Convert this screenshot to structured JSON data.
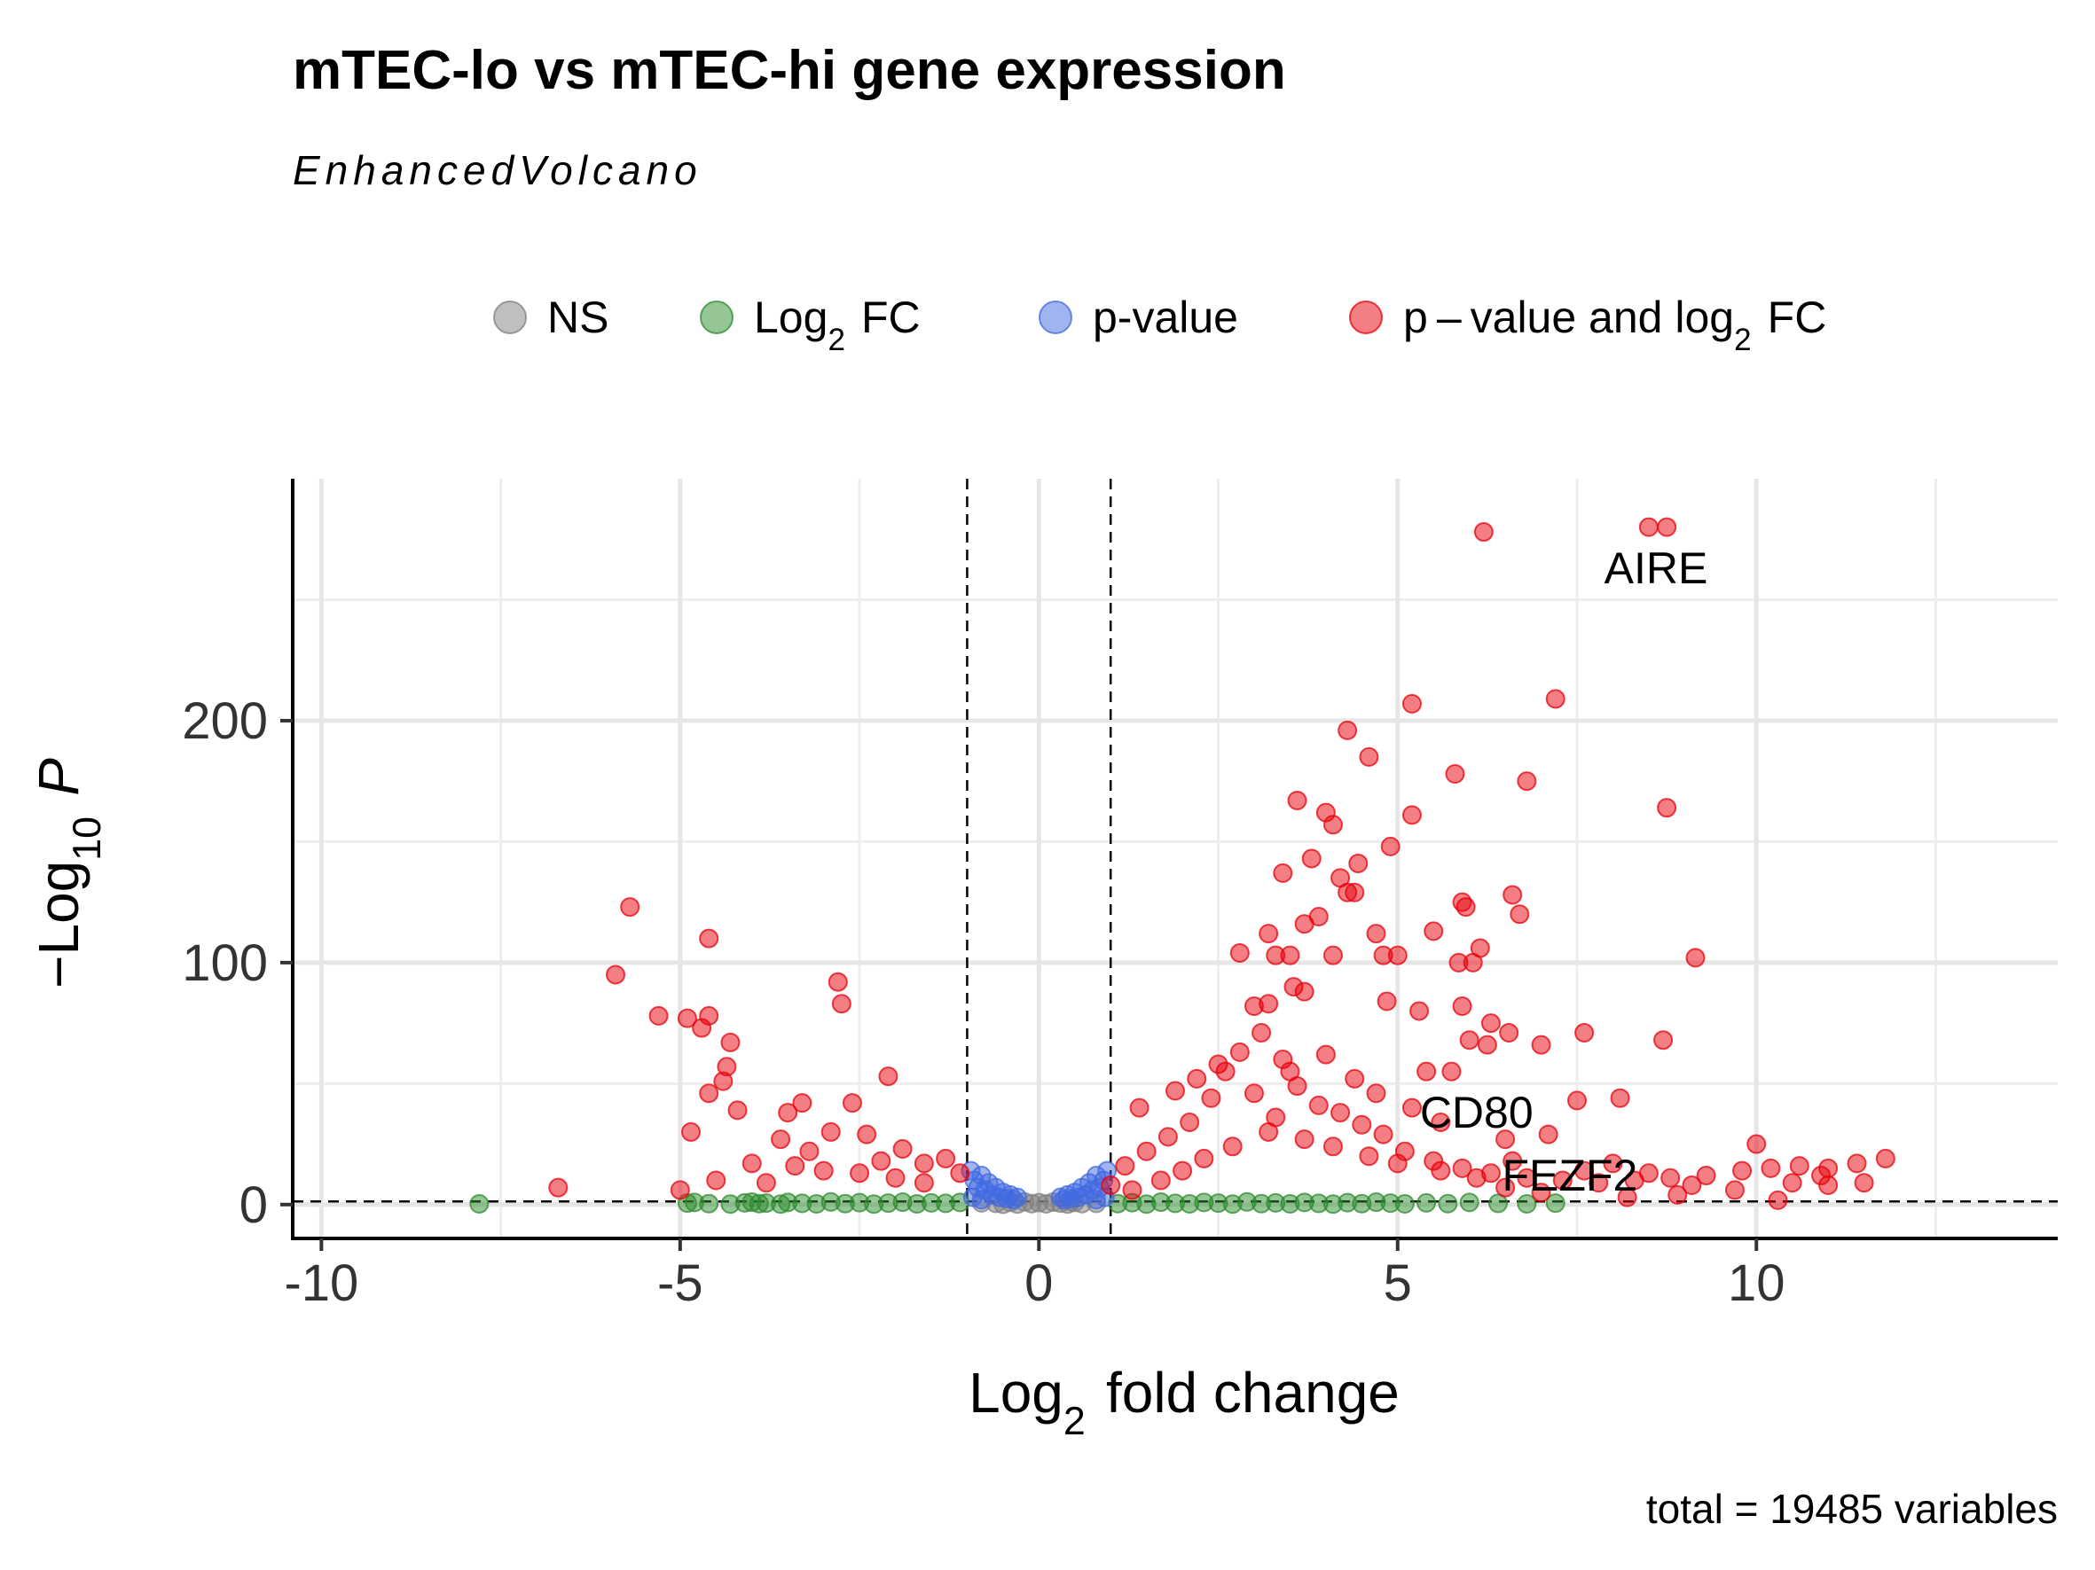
{
  "chart_data": {
    "type": "scatter",
    "title": "mTEC-lo vs mTEC-hi gene expression",
    "subtitle": "EnhancedVolcano",
    "xlabel": "Log2 fold change",
    "ylabel": "−Log10 P",
    "caption": "total = 19485 variables",
    "xlim": [
      -10.4,
      14.2
    ],
    "ylim": [
      -14,
      300
    ],
    "x_ticks": [
      -10,
      -5,
      0,
      5,
      10
    ],
    "x_tick_labels": [
      "-10",
      "-5",
      "0",
      "5",
      "10"
    ],
    "y_ticks": [
      0,
      100,
      200
    ],
    "y_tick_labels": [
      "0",
      "100",
      "200"
    ],
    "fc_cutoff": 1,
    "p_cutoff_neglog10": 1.3,
    "grid": true,
    "legend_position": "top",
    "legend": [
      {
        "key": "NS",
        "label": "NS",
        "color": "#808080"
      },
      {
        "key": "FC",
        "label": "Log2 FC",
        "color": "#2e8b2e"
      },
      {
        "key": "P",
        "label": "p-value",
        "color": "#4169e1"
      },
      {
        "key": "FC_P",
        "label": "p – value and log2 FC",
        "color": "#e8000b"
      }
    ],
    "labels": [
      {
        "text": "AIRE",
        "x": 8.6,
        "y": 263
      },
      {
        "text": "CD80",
        "x": 6.1,
        "y": 38
      },
      {
        "text": "FEZF2",
        "x": 7.4,
        "y": 12
      }
    ],
    "series": [
      {
        "name": "NS",
        "color": "#808080",
        "points": [
          [
            -0.6,
            0.5
          ],
          [
            -0.4,
            0.9
          ],
          [
            -0.3,
            0.2
          ],
          [
            -0.2,
            1.1
          ],
          [
            -0.1,
            0.4
          ],
          [
            0,
            0.8
          ],
          [
            0.1,
            0.3
          ],
          [
            0.2,
            1.0
          ],
          [
            0.3,
            0.6
          ],
          [
            0.4,
            0.2
          ],
          [
            0.5,
            0.9
          ],
          [
            0.6,
            0.4
          ],
          [
            -0.8,
            0.7
          ],
          [
            0.8,
            0.5
          ],
          [
            -0.5,
            0.1
          ],
          [
            0.45,
            1.2
          ]
        ]
      },
      {
        "name": "Log2 FC",
        "color": "#2e8b2e",
        "points": [
          [
            -7.8,
            0.3
          ],
          [
            -4.9,
            0.6
          ],
          [
            -4.8,
            0.9
          ],
          [
            -4.6,
            0.4
          ],
          [
            -4.3,
            0.2
          ],
          [
            -4.1,
            0.7
          ],
          [
            -4.0,
            1.0
          ],
          [
            -3.9,
            0.4
          ],
          [
            -3.8,
            0.6
          ],
          [
            -3.6,
            0.2
          ],
          [
            -3.5,
            0.9
          ],
          [
            -3.3,
            0.5
          ],
          [
            -3.1,
            0.3
          ],
          [
            -2.9,
            1.1
          ],
          [
            -2.7,
            0.4
          ],
          [
            -2.5,
            0.8
          ],
          [
            -2.3,
            0.2
          ],
          [
            -2.1,
            0.6
          ],
          [
            -1.9,
            1.0
          ],
          [
            -1.7,
            0.3
          ],
          [
            -1.5,
            0.7
          ],
          [
            -1.3,
            0.5
          ],
          [
            -1.1,
            0.9
          ],
          [
            1.1,
            0.4
          ],
          [
            1.3,
            0.8
          ],
          [
            1.5,
            0.2
          ],
          [
            1.7,
            1.0
          ],
          [
            1.9,
            0.5
          ],
          [
            2.1,
            0.3
          ],
          [
            2.3,
            0.9
          ],
          [
            2.5,
            0.6
          ],
          [
            2.7,
            0.2
          ],
          [
            2.9,
            1.1
          ],
          [
            3.1,
            0.4
          ],
          [
            3.3,
            0.7
          ],
          [
            3.5,
            0.3
          ],
          [
            3.7,
            0.9
          ],
          [
            3.9,
            0.5
          ],
          [
            4.1,
            0.2
          ],
          [
            4.3,
            0.8
          ],
          [
            4.5,
            0.4
          ],
          [
            4.7,
            1.0
          ],
          [
            4.9,
            0.6
          ],
          [
            5.1,
            0.3
          ],
          [
            5.4,
            0.7
          ],
          [
            5.7,
            0.4
          ],
          [
            6.0,
            0.9
          ],
          [
            6.4,
            0.5
          ],
          [
            6.8,
            0.3
          ],
          [
            7.2,
            0.6
          ]
        ]
      },
      {
        "name": "p-value",
        "color": "#4169e1",
        "points": [
          [
            -0.95,
            14
          ],
          [
            -0.9,
            10
          ],
          [
            -0.85,
            7
          ],
          [
            -0.8,
            12
          ],
          [
            -0.75,
            6
          ],
          [
            -0.7,
            9
          ],
          [
            -0.65,
            4
          ],
          [
            -0.6,
            7
          ],
          [
            -0.55,
            3
          ],
          [
            -0.5,
            5
          ],
          [
            -0.45,
            2.5
          ],
          [
            -0.4,
            4
          ],
          [
            -0.35,
            2
          ],
          [
            -0.3,
            3
          ],
          [
            0.3,
            3
          ],
          [
            0.35,
            2
          ],
          [
            0.4,
            4
          ],
          [
            0.45,
            2.5
          ],
          [
            0.5,
            5
          ],
          [
            0.55,
            3
          ],
          [
            0.6,
            7
          ],
          [
            0.65,
            4
          ],
          [
            0.7,
            9
          ],
          [
            0.75,
            6
          ],
          [
            0.8,
            12
          ],
          [
            0.85,
            7
          ],
          [
            0.9,
            10
          ],
          [
            0.95,
            14
          ],
          [
            -0.92,
            3
          ],
          [
            -0.8,
            2
          ],
          [
            0.8,
            2
          ],
          [
            0.92,
            3
          ]
        ]
      },
      {
        "name": "p – value and log2 FC",
        "color": "#e8000b",
        "points": [
          [
            8.5,
            280
          ],
          [
            8.75,
            280
          ],
          [
            6.2,
            278
          ],
          [
            7.2,
            209
          ],
          [
            5.2,
            207
          ],
          [
            4.3,
            196
          ],
          [
            4.6,
            185
          ],
          [
            5.8,
            178
          ],
          [
            6.8,
            175
          ],
          [
            8.75,
            164
          ],
          [
            3.6,
            167
          ],
          [
            4.0,
            162
          ],
          [
            4.1,
            157
          ],
          [
            5.2,
            161
          ],
          [
            4.9,
            148
          ],
          [
            3.8,
            143
          ],
          [
            4.45,
            141
          ],
          [
            4.2,
            135
          ],
          [
            3.4,
            137
          ],
          [
            4.4,
            129
          ],
          [
            4.3,
            129
          ],
          [
            5.9,
            125
          ],
          [
            5.95,
            123
          ],
          [
            6.6,
            128
          ],
          [
            6.7,
            120
          ],
          [
            5.5,
            113
          ],
          [
            3.9,
            119
          ],
          [
            3.2,
            112
          ],
          [
            4.7,
            112
          ],
          [
            3.7,
            116
          ],
          [
            6.15,
            106
          ],
          [
            6.05,
            100
          ],
          [
            5.85,
            100
          ],
          [
            9.15,
            102
          ],
          [
            2.8,
            104
          ],
          [
            3.3,
            103
          ],
          [
            3.5,
            103
          ],
          [
            4.1,
            103
          ],
          [
            4.8,
            103
          ],
          [
            5.0,
            103
          ],
          [
            3.55,
            90
          ],
          [
            3.7,
            88
          ],
          [
            3.0,
            82
          ],
          [
            3.2,
            83
          ],
          [
            5.9,
            82
          ],
          [
            4.85,
            84
          ],
          [
            5.3,
            80
          ],
          [
            6.3,
            75
          ],
          [
            6.55,
            71
          ],
          [
            6.0,
            68
          ],
          [
            6.25,
            66
          ],
          [
            7.0,
            66
          ],
          [
            7.6,
            71
          ],
          [
            8.7,
            68
          ],
          [
            5.4,
            55
          ],
          [
            5.75,
            55
          ],
          [
            7.5,
            43
          ],
          [
            8.1,
            44
          ],
          [
            -5.7,
            123
          ],
          [
            -5.9,
            95
          ],
          [
            -4.6,
            110
          ],
          [
            -5.3,
            78
          ],
          [
            -4.9,
            77
          ],
          [
            -4.6,
            78
          ],
          [
            -4.7,
            73
          ],
          [
            -4.3,
            67
          ],
          [
            -4.35,
            57
          ],
          [
            -4.4,
            51
          ],
          [
            -4.6,
            46
          ],
          [
            -4.2,
            39
          ],
          [
            -4.85,
            30
          ],
          [
            -2.8,
            92
          ],
          [
            -2.75,
            83
          ],
          [
            -2.1,
            53
          ],
          [
            -3.3,
            42
          ],
          [
            -3.5,
            38
          ],
          [
            -2.6,
            42
          ],
          [
            -6.7,
            7
          ],
          [
            -5.0,
            6
          ],
          [
            -4.5,
            10
          ],
          [
            -4.0,
            17
          ],
          [
            -3.6,
            27
          ],
          [
            -3.2,
            22
          ],
          [
            -2.9,
            30
          ],
          [
            -2.4,
            29
          ],
          [
            -2.2,
            18
          ],
          [
            -1.9,
            23
          ],
          [
            -1.6,
            17
          ],
          [
            -1.3,
            19
          ],
          [
            -1.1,
            13
          ],
          [
            -1.6,
            9
          ],
          [
            -2.0,
            11
          ],
          [
            -2.5,
            13
          ],
          [
            -3.0,
            14
          ],
          [
            -3.4,
            16
          ],
          [
            -3.8,
            9
          ],
          [
            1.2,
            16
          ],
          [
            1.5,
            22
          ],
          [
            1.8,
            28
          ],
          [
            2.1,
            34
          ],
          [
            2.4,
            44
          ],
          [
            2.6,
            55
          ],
          [
            2.8,
            63
          ],
          [
            3.1,
            71
          ],
          [
            3.4,
            60
          ],
          [
            3.6,
            49
          ],
          [
            3.9,
            41
          ],
          [
            4.2,
            38
          ],
          [
            4.5,
            33
          ],
          [
            4.8,
            29
          ],
          [
            5.1,
            22
          ],
          [
            5.5,
            18
          ],
          [
            5.9,
            15
          ],
          [
            6.3,
            13
          ],
          [
            6.8,
            11
          ],
          [
            7.3,
            10
          ],
          [
            7.8,
            9
          ],
          [
            8.3,
            10
          ],
          [
            8.8,
            11
          ],
          [
            9.3,
            12
          ],
          [
            9.8,
            14
          ],
          [
            10.2,
            15
          ],
          [
            10.6,
            16
          ],
          [
            11.0,
            15
          ],
          [
            11.4,
            17
          ],
          [
            11.8,
            19
          ],
          [
            11.5,
            9
          ],
          [
            11.0,
            8
          ],
          [
            10.5,
            9
          ],
          [
            10.9,
            12
          ],
          [
            10.3,
            1.8
          ],
          [
            9.7,
            6
          ],
          [
            8.9,
            4
          ],
          [
            8.2,
            3
          ],
          [
            7.0,
            5
          ],
          [
            6.5,
            7
          ],
          [
            10,
            25
          ],
          [
            1.0,
            8
          ],
          [
            1.3,
            6
          ],
          [
            1.7,
            10
          ],
          [
            2.0,
            14
          ],
          [
            2.3,
            19
          ],
          [
            2.7,
            24
          ],
          [
            3.2,
            30
          ],
          [
            3.7,
            27
          ],
          [
            4.1,
            24
          ],
          [
            4.6,
            20
          ],
          [
            5.0,
            17
          ],
          [
            5.6,
            14
          ],
          [
            6.1,
            11
          ],
          [
            1.4,
            40
          ],
          [
            1.9,
            47
          ],
          [
            2.2,
            52
          ],
          [
            2.5,
            58
          ],
          [
            3.0,
            46
          ],
          [
            3.3,
            36
          ],
          [
            3.5,
            55
          ],
          [
            4.0,
            62
          ],
          [
            4.4,
            52
          ],
          [
            4.7,
            46
          ],
          [
            5.2,
            40
          ],
          [
            5.6,
            34
          ],
          [
            6.5,
            27
          ],
          [
            7.1,
            29
          ],
          [
            6.6,
            18
          ],
          [
            7.6,
            14
          ],
          [
            8.0,
            17
          ],
          [
            8.5,
            13
          ],
          [
            9.1,
            8
          ]
        ]
      }
    ]
  }
}
